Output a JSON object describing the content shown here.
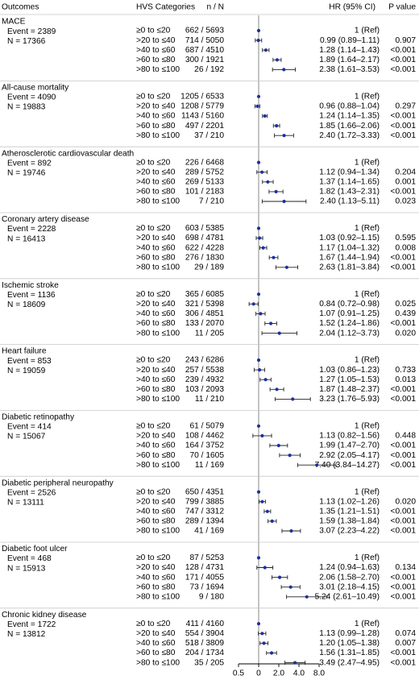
{
  "chart_data": {
    "type": "forest",
    "title": "",
    "xlabel": "",
    "x_scale": "log",
    "reference_line": 1,
    "x_ticks": [
      "0.5",
      "0",
      "2.0",
      "4.0",
      "8.0"
    ],
    "headers": {
      "outcomes": "Outcomes",
      "categories": "HVS Categories",
      "n_over_n": "n / N",
      "hr": "HR (95% CI)",
      "p": "P value"
    },
    "category_labels": [
      "≥0 to ≤20",
      ">20 to ≤40",
      ">40 to ≤60",
      ">60 to ≤80",
      ">80 to ≤100"
    ],
    "groups": [
      {
        "name": "MACE",
        "event": "Event = 2389",
        "total": "N = 17366",
        "rows": [
          {
            "cat": "≥0 to ≤20",
            "nN": "662 / 5693",
            "hr_text": "1 (Ref)",
            "p": "",
            "hr": 1,
            "lo": null,
            "hi": null
          },
          {
            "cat": ">20 to ≤40",
            "nN": "714 / 5050",
            "hr_text": "0.99 (0.89–1.11)",
            "p": "0.907",
            "hr": 0.99,
            "lo": 0.89,
            "hi": 1.11
          },
          {
            "cat": ">40 to ≤60",
            "nN": "687 / 4510",
            "hr_text": "1.28 (1.14–1.43)",
            "p": "<0.001",
            "hr": 1.28,
            "lo": 1.14,
            "hi": 1.43
          },
          {
            "cat": ">60 to ≤80",
            "nN": "300 / 1921",
            "hr_text": "1.89 (1.64–2.17)",
            "p": "<0.001",
            "hr": 1.89,
            "lo": 1.64,
            "hi": 2.17
          },
          {
            "cat": ">80 to ≤100",
            "nN": "26 / 192",
            "hr_text": "2.38 (1.61–3.53)",
            "p": "<0.001",
            "hr": 2.38,
            "lo": 1.61,
            "hi": 3.53
          }
        ]
      },
      {
        "name": "All-cause mortality",
        "event": "Event = 4090",
        "total": "N = 19883",
        "rows": [
          {
            "cat": "≥0 to ≤20",
            "nN": "1205 / 6533",
            "hr_text": "1 (Ref)",
            "p": "",
            "hr": 1,
            "lo": null,
            "hi": null
          },
          {
            "cat": ">20 to ≤40",
            "nN": "1208 / 5779",
            "hr_text": "0.96 (0.88–1.04)",
            "p": "0.297",
            "hr": 0.96,
            "lo": 0.88,
            "hi": 1.04
          },
          {
            "cat": ">40 to ≤60",
            "nN": "1143 / 5160",
            "hr_text": "1.24 (1.14–1.35)",
            "p": "<0.001",
            "hr": 1.24,
            "lo": 1.14,
            "hi": 1.35
          },
          {
            "cat": ">60 to ≤80",
            "nN": "497 / 2201",
            "hr_text": "1.85 (1.66–2.06)",
            "p": "<0.001",
            "hr": 1.85,
            "lo": 1.66,
            "hi": 2.06
          },
          {
            "cat": ">80 to ≤100",
            "nN": "37 / 210",
            "hr_text": "2.40 (1.72–3.33)",
            "p": "<0.001",
            "hr": 2.4,
            "lo": 1.72,
            "hi": 3.33
          }
        ]
      },
      {
        "name": "Atherosclerotic cardiovascular death",
        "event": "Event = 892",
        "total": "N = 19746",
        "rows": [
          {
            "cat": "≥0 to ≤20",
            "nN": "226 / 6468",
            "hr_text": "1 (Ref)",
            "p": "",
            "hr": 1,
            "lo": null,
            "hi": null
          },
          {
            "cat": ">20 to ≤40",
            "nN": "289 / 5752",
            "hr_text": "1.12 (0.94–1.34)",
            "p": "0.204",
            "hr": 1.12,
            "lo": 0.94,
            "hi": 1.34
          },
          {
            "cat": ">40 to ≤60",
            "nN": "269 / 5133",
            "hr_text": "1.37 (1.14–1.65)",
            "p": "0.001",
            "hr": 1.37,
            "lo": 1.14,
            "hi": 1.65
          },
          {
            "cat": ">60 to ≤80",
            "nN": "101 / 2183",
            "hr_text": "1.82 (1.43–2.31)",
            "p": "<0.001",
            "hr": 1.82,
            "lo": 1.43,
            "hi": 2.31
          },
          {
            "cat": ">80 to ≤100",
            "nN": "7 / 210",
            "hr_text": "2.40 (1.13–5.11)",
            "p": "0.023",
            "hr": 2.4,
            "lo": 1.13,
            "hi": 5.11
          }
        ]
      },
      {
        "name": "Coronary artery disease",
        "event": "Event = 2228",
        "total": "N = 16413",
        "rows": [
          {
            "cat": "≥0 to ≤20",
            "nN": "603 / 5385",
            "hr_text": "1 (Ref)",
            "p": "",
            "hr": 1,
            "lo": null,
            "hi": null
          },
          {
            "cat": ">20 to ≤40",
            "nN": "698 / 4781",
            "hr_text": "1.03 (0.92–1.15)",
            "p": "0.595",
            "hr": 1.03,
            "lo": 0.92,
            "hi": 1.15
          },
          {
            "cat": ">40 to ≤60",
            "nN": "622 / 4228",
            "hr_text": "1.17 (1.04–1.32)",
            "p": "0.008",
            "hr": 1.17,
            "lo": 1.04,
            "hi": 1.32
          },
          {
            "cat": ">60 to ≤80",
            "nN": "276 / 1830",
            "hr_text": "1.67 (1.44–1.94)",
            "p": "<0.001",
            "hr": 1.67,
            "lo": 1.44,
            "hi": 1.94
          },
          {
            "cat": ">80 to ≤100",
            "nN": "29 / 189",
            "hr_text": "2.63 (1.81–3.84)",
            "p": "<0.001",
            "hr": 2.63,
            "lo": 1.81,
            "hi": 3.84
          }
        ]
      },
      {
        "name": "Ischemic stroke",
        "event": "Event = 1136",
        "total": "N = 18609",
        "rows": [
          {
            "cat": "≥0 to ≤20",
            "nN": "365 / 6085",
            "hr_text": "1 (Ref)",
            "p": "",
            "hr": 1,
            "lo": null,
            "hi": null
          },
          {
            "cat": ">20 to ≤40",
            "nN": "321 / 5398",
            "hr_text": "0.84 (0.72–0.98)",
            "p": "0.025",
            "hr": 0.84,
            "lo": 0.72,
            "hi": 0.98
          },
          {
            "cat": ">40 to ≤60",
            "nN": "306 / 4851",
            "hr_text": "1.07 (0.91–1.25)",
            "p": "0.439",
            "hr": 1.07,
            "lo": 0.91,
            "hi": 1.25
          },
          {
            "cat": ">60 to ≤80",
            "nN": "133 / 2070",
            "hr_text": "1.52 (1.24–1.86)",
            "p": "<0.001",
            "hr": 1.52,
            "lo": 1.24,
            "hi": 1.86
          },
          {
            "cat": ">80 to ≤100",
            "nN": "11 / 205",
            "hr_text": "2.04 (1.12–3.73)",
            "p": "0.020",
            "hr": 2.04,
            "lo": 1.12,
            "hi": 3.73
          }
        ]
      },
      {
        "name": "Heart failure",
        "event": "Event = 853",
        "total": "N = 19059",
        "rows": [
          {
            "cat": "≥0 to ≤20",
            "nN": "243 / 6286",
            "hr_text": "1 (Ref)",
            "p": "",
            "hr": 1,
            "lo": null,
            "hi": null
          },
          {
            "cat": ">20 to ≤40",
            "nN": "257 / 5538",
            "hr_text": "1.03 (0.86–1.23)",
            "p": "0.733",
            "hr": 1.03,
            "lo": 0.86,
            "hi": 1.23
          },
          {
            "cat": ">40 to ≤60",
            "nN": "239 / 4932",
            "hr_text": "1.27 (1.05–1.53)",
            "p": "0.013",
            "hr": 1.27,
            "lo": 1.05,
            "hi": 1.53
          },
          {
            "cat": ">60 to ≤80",
            "nN": "103 / 2093",
            "hr_text": "1.87 (1.48–2.37)",
            "p": "<0.001",
            "hr": 1.87,
            "lo": 1.48,
            "hi": 2.37
          },
          {
            "cat": ">80 to ≤100",
            "nN": "11 / 210",
            "hr_text": "3.23 (1.76–5.93)",
            "p": "<0.001",
            "hr": 3.23,
            "lo": 1.76,
            "hi": 5.93
          }
        ]
      },
      {
        "name": "Diabetic retinopathy",
        "event": "Event = 414",
        "total": "N = 15067",
        "rows": [
          {
            "cat": "≥0 to ≤20",
            "nN": "61 / 5079",
            "hr_text": "1 (Ref)",
            "p": "",
            "hr": 1,
            "lo": null,
            "hi": null
          },
          {
            "cat": ">20 to ≤40",
            "nN": "108 / 4462",
            "hr_text": "1.13 (0.82–1.56)",
            "p": "0.448",
            "hr": 1.13,
            "lo": 0.82,
            "hi": 1.56
          },
          {
            "cat": ">40 to ≤60",
            "nN": "164 / 3752",
            "hr_text": "1.99 (1.47–2.70)",
            "p": "<0.001",
            "hr": 1.99,
            "lo": 1.47,
            "hi": 2.7
          },
          {
            "cat": ">60 to ≤80",
            "nN": "70 / 1605",
            "hr_text": "2.92 (2.05–4.17)",
            "p": "<0.001",
            "hr": 2.92,
            "lo": 2.05,
            "hi": 4.17
          },
          {
            "cat": ">80 to ≤100",
            "nN": "11 / 169",
            "hr_text": "7.40 (3.84–14.27)",
            "p": "<0.001",
            "hr": 7.4,
            "lo": 3.84,
            "hi": 14.27
          }
        ]
      },
      {
        "name": "Diabetic peripheral neuropathy",
        "event": "Event = 2526",
        "total": "N = 13111",
        "rows": [
          {
            "cat": "≥0 to ≤20",
            "nN": "650 / 4351",
            "hr_text": "1 (Ref)",
            "p": "",
            "hr": 1,
            "lo": null,
            "hi": null
          },
          {
            "cat": ">20 to ≤40",
            "nN": "799 / 3885",
            "hr_text": "1.13 (1.02–1.26)",
            "p": "0.020",
            "hr": 1.13,
            "lo": 1.02,
            "hi": 1.26
          },
          {
            "cat": ">40 to ≤60",
            "nN": "747 / 3312",
            "hr_text": "1.35 (1.21–1.51)",
            "p": "<0.001",
            "hr": 1.35,
            "lo": 1.21,
            "hi": 1.51
          },
          {
            "cat": ">60 to ≤80",
            "nN": "289 / 1394",
            "hr_text": "1.59 (1.38–1.84)",
            "p": "<0.001",
            "hr": 1.59,
            "lo": 1.38,
            "hi": 1.84
          },
          {
            "cat": ">80 to ≤100",
            "nN": "41 / 169",
            "hr_text": "3.07 (2.23–4.22)",
            "p": "<0.001",
            "hr": 3.07,
            "lo": 2.23,
            "hi": 4.22
          }
        ]
      },
      {
        "name": "Diabetic foot ulcer",
        "event": "Event = 468",
        "total": "N = 15913",
        "rows": [
          {
            "cat": "≥0 to ≤20",
            "nN": "87 / 5253",
            "hr_text": "1 (Ref)",
            "p": "",
            "hr": 1,
            "lo": null,
            "hi": null
          },
          {
            "cat": ">20 to ≤40",
            "nN": "128 / 4731",
            "hr_text": "1.24 (0.94–1.63)",
            "p": "0.134",
            "hr": 1.24,
            "lo": 0.94,
            "hi": 1.63
          },
          {
            "cat": ">40 to ≤60",
            "nN": "171 / 4055",
            "hr_text": "2.06 (1.58–2.70)",
            "p": "<0.001",
            "hr": 2.06,
            "lo": 1.58,
            "hi": 2.7
          },
          {
            "cat": ">60 to ≤80",
            "nN": "73 / 1694",
            "hr_text": "3.01 (2.18–4.15)",
            "p": "<0.001",
            "hr": 3.01,
            "lo": 2.18,
            "hi": 4.15
          },
          {
            "cat": ">80 to ≤100",
            "nN": "9 / 180",
            "hr_text": "5.24 (2.61–10.49)",
            "p": "<0.001",
            "hr": 5.24,
            "lo": 2.61,
            "hi": 10.49
          }
        ]
      },
      {
        "name": "Chronic kidney disease",
        "event": "Event = 1722",
        "total": "N = 13812",
        "rows": [
          {
            "cat": "≥0 to ≤20",
            "nN": "411 / 4160",
            "hr_text": "1 (Ref)",
            "p": "",
            "hr": 1,
            "lo": null,
            "hi": null
          },
          {
            "cat": ">20 to ≤40",
            "nN": "554 / 3904",
            "hr_text": "1.13 (0.99–1.28)",
            "p": "0.074",
            "hr": 1.13,
            "lo": 0.99,
            "hi": 1.28
          },
          {
            "cat": ">40 to ≤60",
            "nN": "518 / 3809",
            "hr_text": "1.20 (1.05–1.38)",
            "p": "0.007",
            "hr": 1.2,
            "lo": 1.05,
            "hi": 1.38
          },
          {
            "cat": ">60 to ≤80",
            "nN": "204 / 1734",
            "hr_text": "1.56 (1.31–1.85)",
            "p": "<0.001",
            "hr": 1.56,
            "lo": 1.31,
            "hi": 1.85
          },
          {
            "cat": ">80 to ≤100",
            "nN": "35 / 205",
            "hr_text": "3.49 (2.47–4.95)",
            "p": "<0.001",
            "hr": 3.49,
            "lo": 2.47,
            "hi": 4.95
          }
        ]
      }
    ],
    "colors": {
      "point": "#1f2f9f",
      "ci_line": "#222222",
      "divider": "#c8c8c8",
      "axis": "#000000"
    }
  }
}
